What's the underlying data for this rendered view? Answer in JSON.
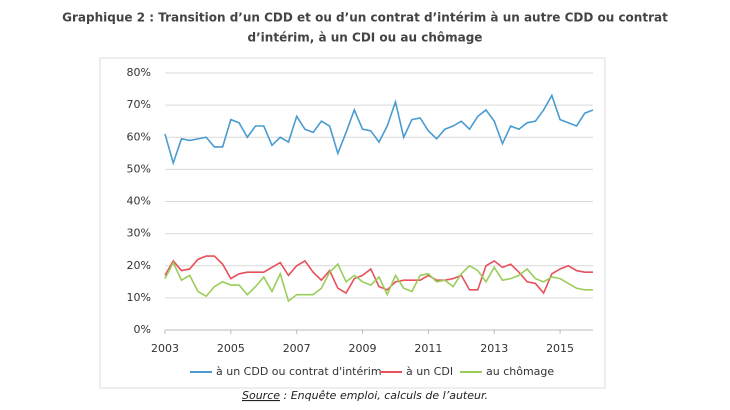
{
  "chart_data": {
    "type": "line",
    "title_lines": [
      "Graphique 2 : Transition d’un CDD et ou d’un contrat d’intérim à un autre CDD ou contrat",
      "d’intérim, à un CDI ou au chômage"
    ],
    "source_label": "Source",
    "source_text": " : Enquête emploi, calculs de l’auteur.",
    "x": [
      2003,
      2003.25,
      2003.5,
      2003.75,
      2004,
      2004.25,
      2004.5,
      2004.75,
      2005,
      2005.25,
      2005.5,
      2005.75,
      2006,
      2006.25,
      2006.5,
      2006.75,
      2007,
      2007.25,
      2007.5,
      2007.75,
      2008,
      2008.25,
      2008.5,
      2008.75,
      2009,
      2009.25,
      2009.5,
      2009.75,
      2010,
      2010.25,
      2010.5,
      2010.75,
      2011,
      2011.25,
      2011.5,
      2011.75,
      2012,
      2012.25,
      2012.5,
      2012.75,
      2013,
      2013.25,
      2013.5,
      2013.75,
      2014,
      2014.25,
      2014.5,
      2014.75,
      2015,
      2015.25,
      2015.5,
      2015.75,
      2016
    ],
    "series": [
      {
        "name": "à un CDD ou contrat d'intérim",
        "color": "#4a9bd0",
        "values": [
          61,
          52,
          59.5,
          59,
          59.5,
          60,
          57,
          57,
          65.5,
          64.5,
          60,
          63.5,
          63.5,
          57.5,
          60,
          58.5,
          66.5,
          62.5,
          61.5,
          65,
          63.5,
          55,
          61.5,
          68.5,
          62.5,
          62,
          58.5,
          63.5,
          71,
          60,
          65.5,
          66,
          62,
          59.5,
          62.5,
          63.5,
          65,
          62.5,
          66.5,
          68.5,
          65,
          58,
          63.5,
          62.5,
          64.5,
          65,
          68.5,
          73,
          65.5,
          64.5,
          63.5,
          67.5,
          68.5
        ]
      },
      {
        "name": "à un CDI",
        "color": "#e8505b",
        "values": [
          17,
          21.5,
          18.5,
          19,
          22,
          23,
          23,
          20.5,
          16,
          17.5,
          18,
          18,
          18,
          19.5,
          21,
          17,
          20,
          21.5,
          18,
          15.5,
          18.5,
          13,
          11.5,
          16,
          17,
          19,
          13.5,
          12.5,
          15,
          15.5,
          15.5,
          15.5,
          17,
          15.5,
          15.5,
          16,
          17,
          12.5,
          12.5,
          20,
          21.5,
          19.5,
          20.5,
          18,
          15,
          14.5,
          11.5,
          17.5,
          19,
          20,
          18.5,
          18,
          18
        ]
      },
      {
        "name": "au chômage",
        "color": "#9acd5a",
        "values": [
          16,
          21,
          15.5,
          17,
          12,
          10.5,
          13.5,
          15,
          14,
          14,
          11,
          13.5,
          16.5,
          12,
          17.5,
          9,
          11,
          11,
          11,
          13,
          18,
          20.5,
          15,
          17,
          15,
          14,
          16.5,
          11,
          17,
          13,
          12,
          17,
          17.5,
          15,
          15.5,
          13.5,
          17.5,
          20,
          18.5,
          15,
          19.5,
          15.5,
          16,
          17,
          19,
          16,
          15,
          16.5,
          16,
          14.5,
          13,
          12.5,
          12.5
        ]
      }
    ],
    "xlim": [
      2003,
      2016
    ],
    "xticks": [
      2003,
      2005,
      2007,
      2009,
      2011,
      2013,
      2015
    ],
    "ylim": [
      0,
      80
    ],
    "yticks": [
      {
        "value": 0,
        "label": "0%"
      },
      {
        "value": 10,
        "label": "10%"
      },
      {
        "value": 20,
        "label": "20%"
      },
      {
        "value": 30,
        "label": "30%"
      },
      {
        "value": 40,
        "label": "40%"
      },
      {
        "value": 50,
        "label": "50%"
      },
      {
        "value": 60,
        "label": "60%"
      },
      {
        "value": 70,
        "label": "70%"
      },
      {
        "value": 80,
        "label": "80%"
      }
    ],
    "grid": true
  }
}
